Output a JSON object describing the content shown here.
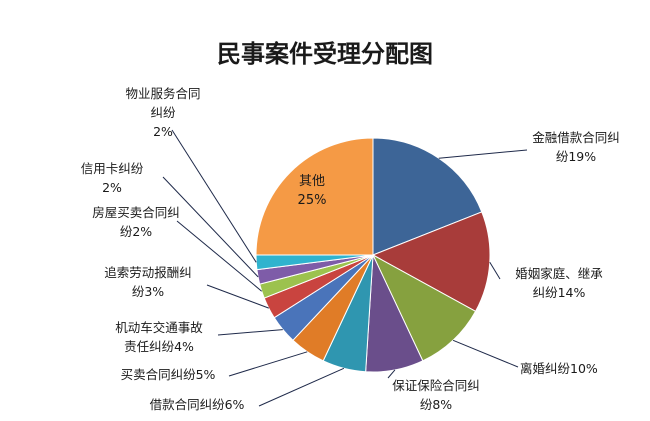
{
  "chart_data": {
    "type": "pie",
    "title": "民事案件受理分配图",
    "slices": [
      {
        "label_lines": [
          "金融借款合同纠",
          "纷19%"
        ],
        "value": 19,
        "color": "#3D6597"
      },
      {
        "label_lines": [
          "婚姻家庭、继承",
          "纠纷14%"
        ],
        "value": 14,
        "color": "#A83C3A"
      },
      {
        "label_lines": [
          "离婚纠纷10%"
        ],
        "value": 10,
        "color": "#86A13F"
      },
      {
        "label_lines": [
          "保证保险合同纠",
          "纷8%"
        ],
        "value": 8,
        "color": "#6A4E8B"
      },
      {
        "label_lines": [
          "借款合同纠纷6%"
        ],
        "value": 6,
        "color": "#2F96B0"
      },
      {
        "label_lines": [
          "买卖合同纠纷5%"
        ],
        "value": 5,
        "color": "#E07C27"
      },
      {
        "label_lines": [
          "机动车交通事故",
          "责任纠纷4%"
        ],
        "value": 4,
        "color": "#4A74BA"
      },
      {
        "label_lines": [
          "追索劳动报酬纠",
          "纷3%"
        ],
        "value": 3,
        "color": "#C9443F"
      },
      {
        "label_lines": [
          "房屋买卖合同纠",
          "纷2%"
        ],
        "value": 2,
        "color": "#9CC24E"
      },
      {
        "label_lines": [
          "信用卡纠纷",
          "2%"
        ],
        "value": 2,
        "color": "#7E5CA8"
      },
      {
        "label_lines": [
          "物业服务合同",
          "纠纷",
          "2%"
        ],
        "value": 2,
        "color": "#2FB3CE"
      },
      {
        "label_lines": [
          "其他",
          "25%"
        ],
        "value": 25,
        "color": "#F59A45"
      }
    ]
  }
}
